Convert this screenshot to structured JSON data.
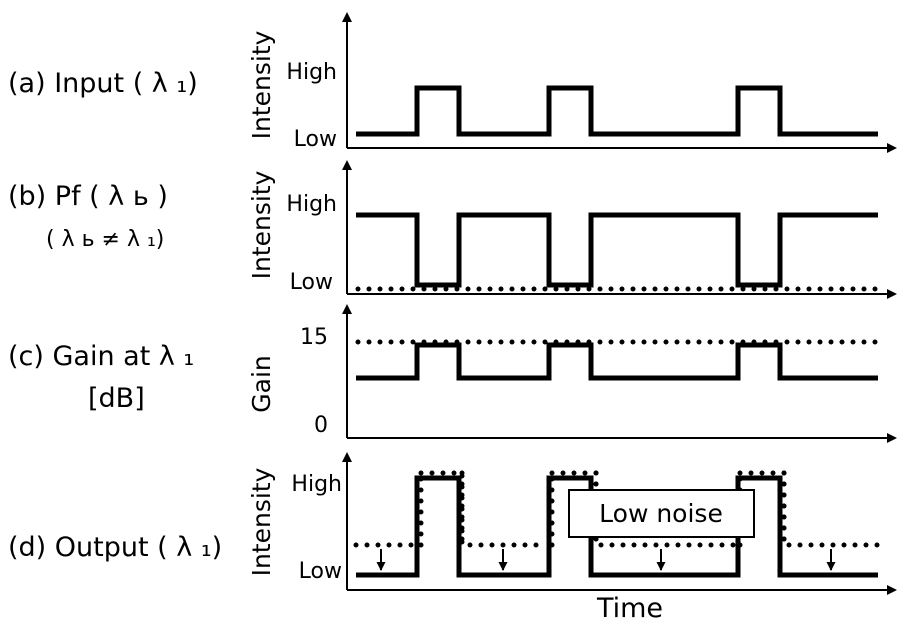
{
  "panels": [
    {
      "label": "(a) Input ( λ ₁)",
      "ylabel": "Intensity",
      "tick_high": "High",
      "tick_low": "Low"
    },
    {
      "label": "(b) Pf  ( λ ь )",
      "sublabel": "( λ ь ≠ λ ₁)",
      "ylabel": "Intensity",
      "tick_high": "High",
      "tick_low": "Low"
    },
    {
      "label": "(c) Gain at λ ₁",
      "sublabel": "[dB]",
      "ylabel": "Gain",
      "tick_high": "15",
      "tick_low": "0"
    },
    {
      "label": "(d) Output ( λ ₁)",
      "ylabel": "Intensity",
      "tick_high": "High",
      "tick_low": "Low"
    }
  ],
  "annotation": "Low noise",
  "xlabel": "Time",
  "colors": {
    "ink": "#000000",
    "background": "#ffffff"
  }
}
